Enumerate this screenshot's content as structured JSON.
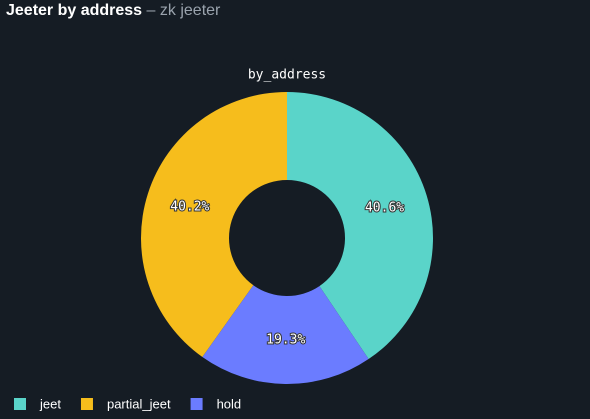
{
  "header": {
    "title": "Jeeter by address",
    "subtitle": "zk jeeter"
  },
  "chart_data": {
    "type": "donut",
    "title": "by_address",
    "direction": "counterclockwise",
    "categories": [
      "jeet",
      "partial_jeet",
      "hold"
    ],
    "values": [
      40.6,
      40.2,
      19.3
    ],
    "value_labels": [
      "40.6%",
      "40.2%",
      "19.3%"
    ],
    "colors": [
      "#5ad4c9",
      "#f6bd1c",
      "#6b7cff"
    ],
    "legend": "bottom-left"
  }
}
